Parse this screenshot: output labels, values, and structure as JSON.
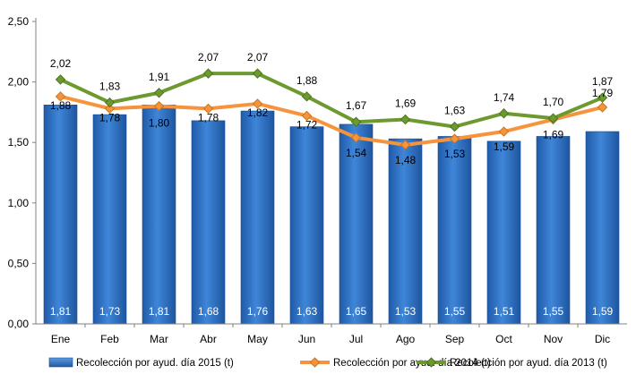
{
  "chart_data": {
    "type": "bar",
    "categories": [
      "Ene",
      "Feb",
      "Mar",
      "Abr",
      "May",
      "Jun",
      "Jul",
      "Ago",
      "Sep",
      "Oct",
      "Nov",
      "Dic"
    ],
    "yticks": [
      "0,00",
      "0,50",
      "1,00",
      "1,50",
      "2,00",
      "2,50"
    ],
    "ylim": [
      0,
      2.5
    ],
    "grid": false,
    "legend_position": "bottom",
    "series": [
      {
        "name": "Recolección por ayud. día 2015 (t)",
        "kind": "bar",
        "color": "#2e6fc0",
        "values": [
          1.81,
          1.73,
          1.81,
          1.68,
          1.76,
          1.63,
          1.65,
          1.53,
          1.55,
          1.51,
          1.55,
          1.59
        ],
        "labels": [
          "1,81",
          "1,73",
          "1,81",
          "1,68",
          "1,76",
          "1,63",
          "1,65",
          "1,53",
          "1,55",
          "1,51",
          "1,55",
          "1,59"
        ]
      },
      {
        "name": "Recolección por ayud. día 2014 (t)",
        "kind": "line",
        "color": "#f7933c",
        "values": [
          1.88,
          1.78,
          1.8,
          1.78,
          1.82,
          1.72,
          1.54,
          1.48,
          1.53,
          1.59,
          1.69,
          1.79
        ],
        "labels": [
          "1,88",
          "1,78",
          "1,80",
          "1,78",
          "1,82",
          "1,72",
          "1,54",
          "1,48",
          "1,53",
          "1,59",
          "1,69",
          "1,79"
        ]
      },
      {
        "name": "Recolección por ayud. día 2013 (t)",
        "kind": "line",
        "color": "#6d9a2f",
        "values": [
          2.02,
          1.83,
          1.91,
          2.07,
          2.07,
          1.88,
          1.67,
          1.69,
          1.63,
          1.74,
          1.7,
          1.87
        ],
        "labels": [
          "2,02",
          "1,83",
          "1,91",
          "2,07",
          "2,07",
          "1,88",
          "1,67",
          "1,69",
          "1,63",
          "1,74",
          "1,70",
          "1,87"
        ]
      }
    ]
  }
}
